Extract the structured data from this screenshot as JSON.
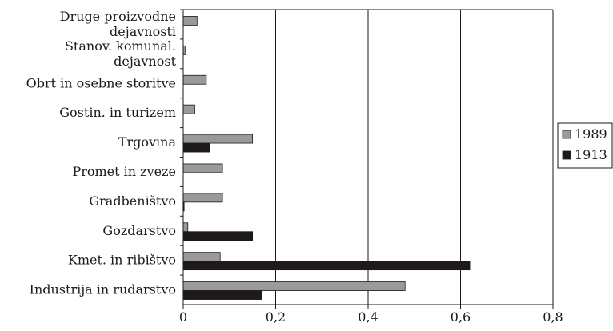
{
  "chart_data": {
    "type": "bar",
    "orientation": "horizontal",
    "title": "",
    "xlabel": "",
    "ylabel": "",
    "categories": [
      [
        "Druge proizvodne",
        "dejavnosti"
      ],
      [
        "Stanov. komunal.",
        "dejavnost"
      ],
      [
        "Obrt in osebne storitve"
      ],
      [
        "Gostin. in turizem"
      ],
      [
        "Trgovina"
      ],
      [
        "Promet in zveze"
      ],
      [
        "Gradbeništvo"
      ],
      [
        "Gozdarstvo"
      ],
      [
        "Kmet.  in ribištvo"
      ],
      [
        "Industrija in rudarstvo"
      ]
    ],
    "series": [
      {
        "name": "1989",
        "color": "#9a9a9a",
        "values": [
          0.03,
          0.005,
          0.05,
          0.025,
          0.15,
          0.085,
          0.085,
          0.01,
          0.08,
          0.48
        ]
      },
      {
        "name": "1913",
        "color": "#1f1a1a",
        "values": [
          0,
          0,
          0,
          0,
          0.058,
          0,
          0.002,
          0.15,
          0.62,
          0.17
        ]
      }
    ],
    "xlim": [
      0,
      0.8
    ],
    "xticks": [
      "0",
      "0,2",
      "0,4",
      "0,6",
      "0,8"
    ],
    "xtick_values": [
      0,
      0.2,
      0.4,
      0.6,
      0.8
    ],
    "grid": "vertical",
    "legend": "right"
  }
}
